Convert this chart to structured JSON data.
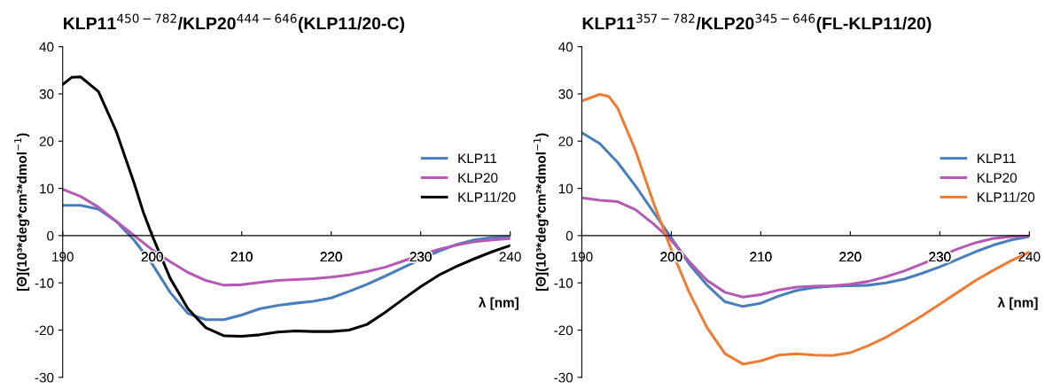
{
  "chart_data": [
    {
      "type": "line",
      "title": "KLP11$^{450−782}$/KLP20$^{444−646}$(KLP11/20-C)",
      "xlabel": "λ [nm]",
      "ylabel": "[Θ](10³*deg*cm²*dmol$^{−1}$)",
      "xlim": [
        190,
        240
      ],
      "ylim": [
        -30,
        40
      ],
      "xticks": [
        190,
        200,
        210,
        220,
        230,
        240
      ],
      "yticks": [
        -30,
        -20,
        -10,
        0,
        10,
        20,
        30,
        40
      ],
      "legend": "right",
      "x": [
        190,
        192,
        194,
        196,
        198,
        200,
        202,
        204,
        206,
        208,
        210,
        212,
        214,
        216,
        218,
        220,
        222,
        224,
        226,
        228,
        230,
        232,
        234,
        236,
        238,
        240
      ],
      "series": [
        {
          "name": "KLP11",
          "color": "#4a7ebb",
          "values": [
            6.4,
            6.4,
            5.6,
            3,
            -1,
            -6,
            -12,
            -16.5,
            -17.8,
            -17.8,
            -16.8,
            -15.5,
            -14.8,
            -14.3,
            -13.9,
            -13.2,
            -11.8,
            -10.3,
            -8.6,
            -6.8,
            -5,
            -3.3,
            -1.9,
            -0.9,
            -0.4,
            -0.3
          ]
        },
        {
          "name": "KLP20",
          "color": "#b45ab4",
          "values": [
            9.8,
            8.3,
            6,
            3,
            0,
            -3,
            -5.5,
            -7.8,
            -9.5,
            -10.5,
            -10.4,
            -9.9,
            -9.5,
            -9.3,
            -9.1,
            -8.8,
            -8.3,
            -7.6,
            -6.7,
            -5.4,
            -4.1,
            -2.9,
            -2,
            -1.3,
            -0.9,
            -0.6
          ]
        },
        {
          "name": "KLP11/20",
          "color": "#000000",
          "x": [
            190,
            191,
            192,
            194,
            196,
            198,
            199,
            200,
            202,
            204,
            206,
            208,
            210,
            212,
            214,
            216,
            218,
            220,
            222,
            224,
            226,
            228,
            230,
            232,
            234,
            236,
            238,
            240
          ],
          "values": [
            32,
            33.5,
            33.6,
            30.5,
            22,
            11,
            5,
            0,
            -9,
            -15.5,
            -19.5,
            -21.2,
            -21.3,
            -21,
            -20.4,
            -20.2,
            -20.3,
            -20.3,
            -20,
            -18.8,
            -16.3,
            -13.5,
            -10.8,
            -8.4,
            -6.5,
            -4.9,
            -3.4,
            -2.1
          ]
        }
      ]
    },
    {
      "type": "line",
      "title": "KLP11$^{357−782}$/KLP20$^{345−646}$(FL-KLP11/20)",
      "xlabel": "λ [nm]",
      "ylabel": "[Θ](10³*deg*cm²*dmol$^{−1}$)",
      "xlim": [
        190,
        240
      ],
      "ylim": [
        -30,
        40
      ],
      "xticks": [
        190,
        200,
        210,
        220,
        230,
        240
      ],
      "yticks": [
        -30,
        -20,
        -10,
        0,
        10,
        20,
        30,
        40
      ],
      "legend": "right",
      "x": [
        190,
        192,
        194,
        196,
        198,
        200,
        202,
        204,
        206,
        208,
        210,
        212,
        214,
        216,
        218,
        220,
        222,
        224,
        226,
        228,
        230,
        232,
        234,
        236,
        238,
        240
      ],
      "series": [
        {
          "name": "KLP11",
          "color": "#4a7ebb",
          "values": [
            21.8,
            19.5,
            15.5,
            10.5,
            5,
            -0.5,
            -6,
            -10.5,
            -14,
            -15,
            -14.3,
            -12.8,
            -11.6,
            -11,
            -10.7,
            -10.6,
            -10.5,
            -10,
            -9.2,
            -8,
            -6.6,
            -5,
            -3.4,
            -2,
            -0.9,
            -0.2
          ]
        },
        {
          "name": "KLP20",
          "color": "#b45ab4",
          "values": [
            8,
            7.5,
            7.2,
            5.5,
            2.5,
            -1,
            -5.5,
            -9.5,
            -12,
            -13,
            -12.5,
            -11.5,
            -10.9,
            -10.7,
            -10.6,
            -10.3,
            -9.7,
            -8.7,
            -7.5,
            -6,
            -4.4,
            -2.8,
            -1.5,
            -0.6,
            -0.2,
            -0.1
          ]
        },
        {
          "name": "KLP11/20",
          "color": "#f07c33",
          "x": [
            190,
            192,
            193,
            194,
            196,
            198,
            200,
            202,
            204,
            206,
            208,
            210,
            212,
            214,
            216,
            218,
            220,
            222,
            224,
            226,
            228,
            230,
            232,
            234,
            236,
            238,
            240
          ],
          "values": [
            28.5,
            29.9,
            29.5,
            27,
            18,
            7,
            -3,
            -12,
            -19.5,
            -25,
            -27.2,
            -26.5,
            -25.3,
            -25,
            -25.3,
            -25.4,
            -24.8,
            -23.3,
            -21.5,
            -19.3,
            -17,
            -14.5,
            -12,
            -9.5,
            -7.3,
            -5.3,
            -3.5
          ]
        }
      ]
    }
  ]
}
